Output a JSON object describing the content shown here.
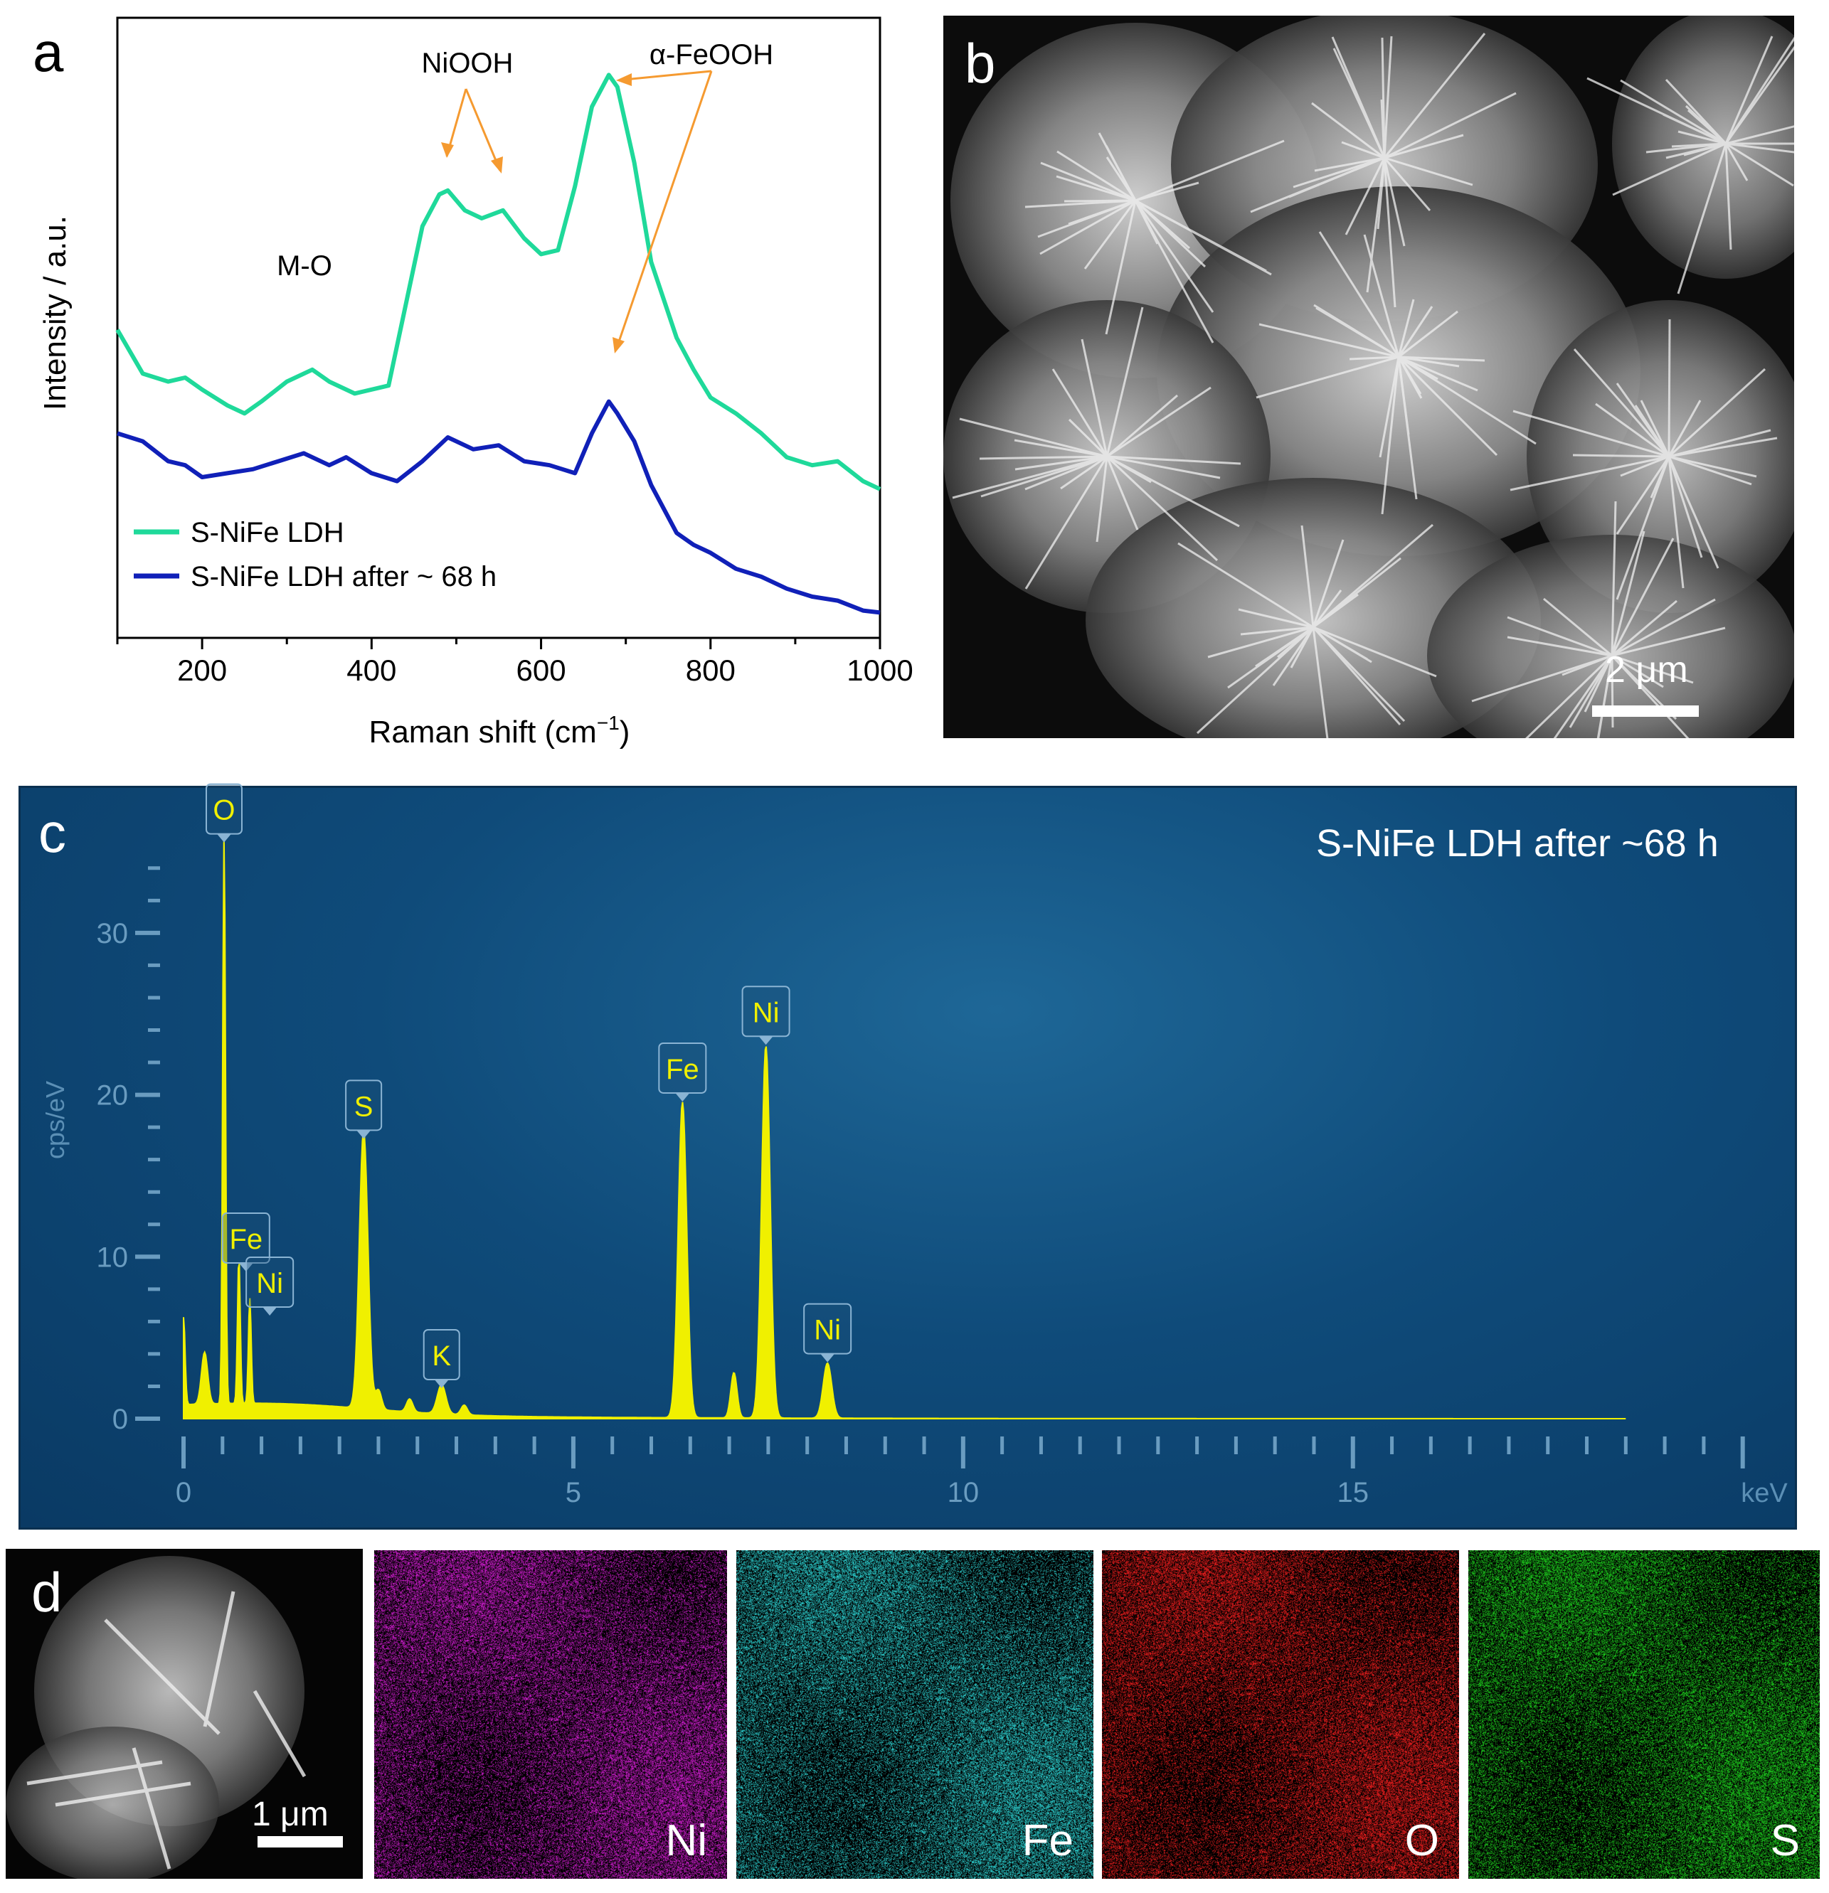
{
  "panel_a": {
    "label": "a",
    "chart_data": {
      "type": "line",
      "xlabel_main": "Raman shift (cm",
      "xlabel_sup": "−1",
      "xlabel_close": ")",
      "ylabel": "Intensity / a.u.",
      "xlim": [
        100,
        1000
      ],
      "xticks": [
        "200",
        "400",
        "600",
        "800",
        "1000"
      ],
      "annotations": [
        "M-O",
        "NiOOH",
        "α-FeOOH"
      ],
      "series": [
        {
          "name": "S-NiFe LDH",
          "color": "#1fd99a",
          "x": [
            100,
            130,
            160,
            180,
            200,
            230,
            250,
            270,
            300,
            330,
            350,
            380,
            420,
            440,
            460,
            480,
            490,
            510,
            530,
            555,
            580,
            600,
            620,
            640,
            660,
            680,
            690,
            710,
            730,
            760,
            780,
            800,
            830,
            860,
            890,
            920,
            950,
            980,
            1000
          ],
          "y": [
            7.2,
            6.1,
            5.9,
            6.0,
            5.7,
            5.3,
            5.1,
            5.4,
            5.9,
            6.2,
            5.9,
            5.6,
            5.8,
            7.8,
            9.8,
            10.6,
            10.7,
            10.2,
            10.0,
            10.2,
            9.5,
            9.1,
            9.2,
            10.8,
            12.8,
            13.6,
            13.3,
            11.4,
            8.9,
            7.0,
            6.2,
            5.5,
            5.1,
            4.6,
            4.0,
            3.8,
            3.9,
            3.4,
            3.2
          ]
        },
        {
          "name": "S-NiFe LDH after ~ 68 h",
          "color": "#1020b8",
          "x": [
            100,
            130,
            160,
            180,
            200,
            230,
            260,
            290,
            320,
            350,
            370,
            400,
            430,
            460,
            490,
            520,
            550,
            580,
            610,
            640,
            660,
            680,
            690,
            710,
            730,
            760,
            780,
            800,
            830,
            860,
            890,
            920,
            950,
            980,
            1000
          ],
          "y": [
            4.6,
            4.4,
            3.9,
            3.8,
            3.5,
            3.6,
            3.7,
            3.9,
            4.1,
            3.8,
            4.0,
            3.6,
            3.4,
            3.9,
            4.5,
            4.2,
            4.3,
            3.9,
            3.8,
            3.6,
            4.6,
            5.4,
            5.1,
            4.4,
            3.3,
            2.1,
            1.8,
            1.6,
            1.2,
            1.0,
            0.7,
            0.5,
            0.4,
            0.15,
            0.1
          ]
        }
      ]
    }
  },
  "panel_b": {
    "label": "b",
    "scale_text": "2 μm"
  },
  "panel_c": {
    "label": "c",
    "title": "S-NiFe LDH after ~68 h",
    "chart_data": {
      "type": "line",
      "ylabel": "cps/eV",
      "xunit": "keV",
      "xlim": [
        0,
        20
      ],
      "ylim": [
        0,
        35
      ],
      "xticks": [
        "0",
        "5",
        "10",
        "15"
      ],
      "yticks": [
        "0",
        "10",
        "20",
        "30"
      ],
      "peaks": [
        {
          "element": "O",
          "energy": 0.52,
          "height": 35.5
        },
        {
          "element": "Fe",
          "energy": 0.71,
          "height": 9.0
        },
        {
          "element": "Ni",
          "energy": 0.85,
          "height": 6.5
        },
        {
          "element": "S",
          "energy": 2.31,
          "height": 17.2
        },
        {
          "element": "K",
          "energy": 3.31,
          "height": 1.8
        },
        {
          "element": "Fe",
          "energy": 6.4,
          "height": 19.5
        },
        {
          "element": "Ni",
          "energy": 7.47,
          "height": 23.0
        },
        {
          "element": "Ni",
          "energy": 8.26,
          "height": 3.4
        }
      ]
    }
  },
  "panel_d": {
    "label": "d",
    "scale_text": "1 μm",
    "maps": [
      {
        "element": "Ni",
        "color": "#e020e0"
      },
      {
        "element": "Fe",
        "color": "#30e0e0"
      },
      {
        "element": "O",
        "color": "#ff2020"
      },
      {
        "element": "S",
        "color": "#20e020"
      }
    ]
  }
}
